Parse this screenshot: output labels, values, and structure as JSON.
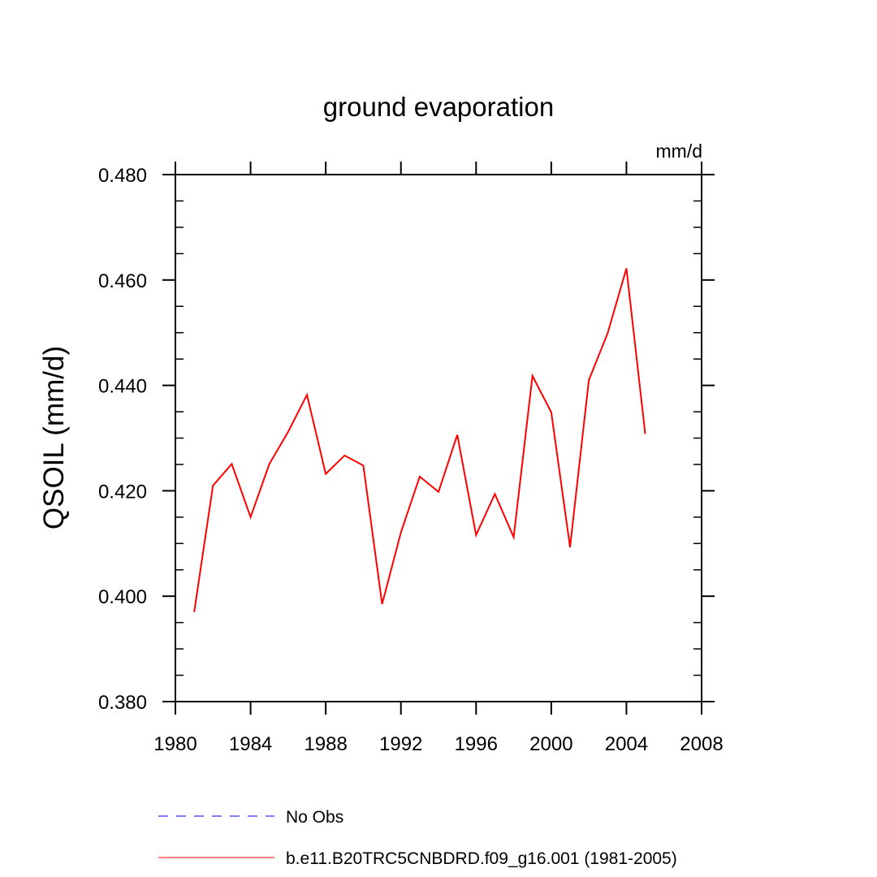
{
  "chart_data": {
    "type": "line",
    "title": "ground evaporation",
    "units_label": "mm/d",
    "xlabel": "",
    "ylabel": "QSOIL  (mm/d)",
    "xlim": [
      1980,
      2008
    ],
    "ylim": [
      0.38,
      0.48
    ],
    "x_ticks": [
      1980,
      1984,
      1988,
      1992,
      1996,
      2000,
      2004,
      2008
    ],
    "y_ticks": [
      0.38,
      0.4,
      0.42,
      0.44,
      0.46,
      0.48
    ],
    "x_tick_labels": [
      "1980",
      "1984",
      "1988",
      "1992",
      "1996",
      "2000",
      "2004",
      "2008"
    ],
    "y_tick_labels": [
      "0.380",
      "0.400",
      "0.420",
      "0.440",
      "0.460",
      "0.480"
    ],
    "grid": false,
    "legend_position": "bottom",
    "series": [
      {
        "name": "No Obs",
        "color": "#0000ff",
        "style": "dashed",
        "x": [],
        "y": []
      },
      {
        "name": "b.e11.B20TRC5CNBDRD.f09_g16.001 (1981-2005)",
        "color": "#ff0000",
        "style": "solid",
        "x": [
          1981,
          1982,
          1983,
          1984,
          1985,
          1986,
          1987,
          1988,
          1989,
          1990,
          1991,
          1992,
          1993,
          1994,
          1995,
          1996,
          1997,
          1998,
          1999,
          2000,
          2001,
          2002,
          2003,
          2004,
          2005
        ],
        "y": [
          0.397,
          0.421,
          0.4251,
          0.415,
          0.4251,
          0.4312,
          0.4382,
          0.4232,
          0.4267,
          0.4248,
          0.3985,
          0.4121,
          0.4227,
          0.4198,
          0.4306,
          0.4116,
          0.4194,
          0.4112,
          0.4418,
          0.4349,
          0.4093,
          0.441,
          0.4499,
          0.4622,
          0.4308
        ]
      }
    ]
  }
}
